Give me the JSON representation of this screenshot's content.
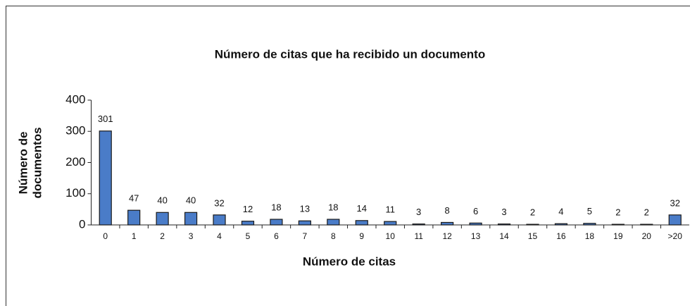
{
  "chart_data": {
    "type": "bar",
    "title": "Número de citas que ha recibido un documento",
    "xlabel": "Número de citas",
    "ylabel": [
      "Número de",
      "documentos"
    ],
    "categories": [
      "0",
      "1",
      "2",
      "3",
      "4",
      "5",
      "6",
      "7",
      "8",
      "9",
      "10",
      "11",
      "12",
      "13",
      "14",
      "15",
      "16",
      "18",
      "19",
      "20",
      ">20"
    ],
    "values": [
      301,
      47,
      40,
      40,
      32,
      12,
      18,
      13,
      18,
      14,
      11,
      3,
      8,
      6,
      3,
      2,
      4,
      5,
      2,
      2,
      32
    ],
    "color": "#4a7cc8",
    "ylim": [
      0,
      400
    ],
    "yticks": [
      0,
      100,
      200,
      300,
      400
    ],
    "grid": false
  }
}
